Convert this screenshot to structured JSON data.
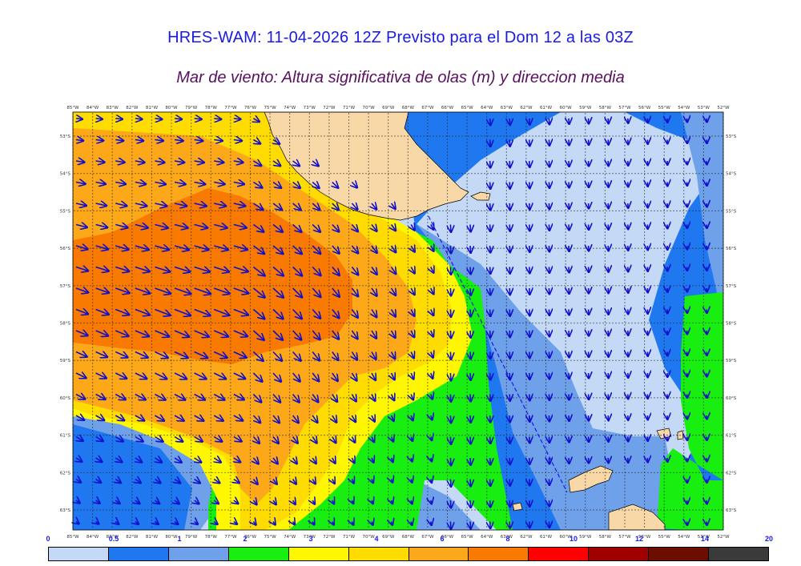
{
  "header": {
    "title": "HRES-WAM: 11-04-2026 12Z Previsto para el Dom 12 a las 03Z",
    "subtitle": "Mar de viento: Altura significativa de olas (m) y direccion media"
  },
  "map": {
    "lon_labels": [
      "85°W",
      "84°W",
      "83°W",
      "82°W",
      "81°W",
      "80°W",
      "79°W",
      "78°W",
      "77°W",
      "76°W",
      "75°W",
      "74°W",
      "73°W",
      "72°W",
      "71°W",
      "70°W",
      "69°W",
      "68°W",
      "67°W",
      "66°W",
      "65°W",
      "64°W",
      "63°W",
      "62°W",
      "61°W",
      "60°W",
      "59°W",
      "58°W",
      "57°W",
      "56°W",
      "55°W",
      "54°W",
      "53°W",
      "52°W"
    ],
    "lat_labels": [
      "53°S",
      "54°S",
      "55°S",
      "56°S",
      "57°S",
      "58°S",
      "59°S",
      "60°S",
      "61°S",
      "62°S",
      "63°S"
    ],
    "colors": {
      "land": "#f9d8a8",
      "c0": "#c4d9f5",
      "c05": "#1f78f0",
      "c1": "#6fa0ea",
      "c2": "#18ee10",
      "c3": "#fff700",
      "c4": "#fedc00",
      "c6": "#fca818",
      "c8": "#f87a00",
      "arrow": "#1010cc"
    }
  },
  "legend": {
    "labels": [
      "0",
      "0.5",
      "1",
      "2",
      "3",
      "4",
      "6",
      "8",
      "10",
      "12",
      "14",
      "20"
    ],
    "colors": [
      "#c4d9f5",
      "#1f78f0",
      "#6fa0ea",
      "#18ee10",
      "#fff700",
      "#fedc00",
      "#fca818",
      "#f87a00",
      "#ff0000",
      "#a00000",
      "#6b0e00",
      "#3a3a3a"
    ]
  }
}
